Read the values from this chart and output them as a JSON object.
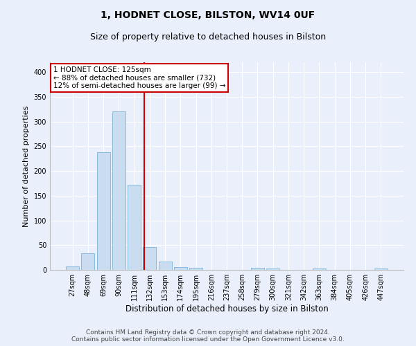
{
  "title1": "1, HODNET CLOSE, BILSTON, WV14 0UF",
  "title2": "Size of property relative to detached houses in Bilston",
  "xlabel": "Distribution of detached houses by size in Bilston",
  "ylabel": "Number of detached properties",
  "categories": [
    "27sqm",
    "48sqm",
    "69sqm",
    "90sqm",
    "111sqm",
    "132sqm",
    "153sqm",
    "174sqm",
    "195sqm",
    "216sqm",
    "237sqm",
    "258sqm",
    "279sqm",
    "300sqm",
    "321sqm",
    "342sqm",
    "363sqm",
    "384sqm",
    "405sqm",
    "426sqm",
    "447sqm"
  ],
  "values": [
    7,
    33,
    238,
    320,
    172,
    46,
    17,
    5,
    4,
    0,
    0,
    0,
    4,
    3,
    0,
    0,
    3,
    0,
    0,
    0,
    3
  ],
  "bar_color": "#c9dcf0",
  "bar_edge_color": "#7ab3d8",
  "vline_color": "#cc0000",
  "annotation_text": "1 HODNET CLOSE: 125sqm\n← 88% of detached houses are smaller (732)\n12% of semi-detached houses are larger (99) →",
  "annotation_box_color": "#ffffff",
  "annotation_box_edge": "#cc0000",
  "ylim": [
    0,
    420
  ],
  "yticks": [
    0,
    50,
    100,
    150,
    200,
    250,
    300,
    350,
    400
  ],
  "bg_color": "#eaf0fb",
  "plot_bg_color": "#eaf0fb",
  "footer1": "Contains HM Land Registry data © Crown copyright and database right 2024.",
  "footer2": "Contains public sector information licensed under the Open Government Licence v3.0.",
  "title1_fontsize": 10,
  "title2_fontsize": 9,
  "xlabel_fontsize": 8.5,
  "ylabel_fontsize": 8,
  "tick_fontsize": 7,
  "footer_fontsize": 6.5,
  "ann_fontsize": 7.5
}
